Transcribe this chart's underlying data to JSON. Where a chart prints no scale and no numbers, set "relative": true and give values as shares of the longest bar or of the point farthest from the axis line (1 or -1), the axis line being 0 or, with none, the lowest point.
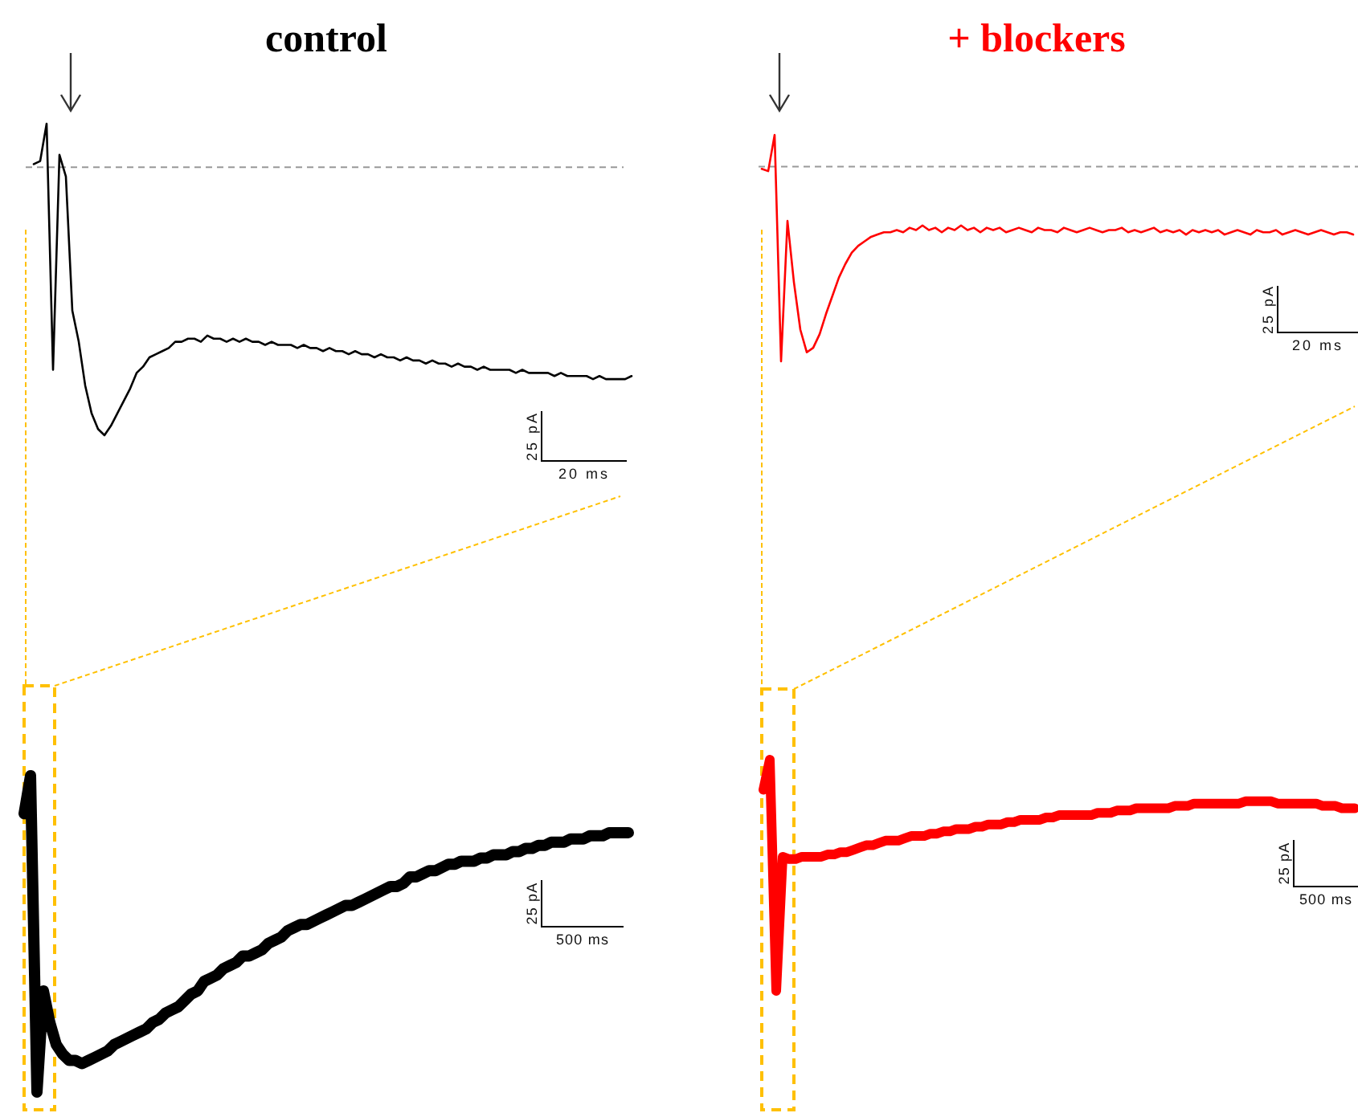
{
  "chart_data": [
    {
      "type": "line",
      "title": "control",
      "relative": true,
      "categories": [
        null,
        null,
        null,
        null,
        null,
        null,
        null,
        null,
        null,
        null,
        null,
        null,
        null,
        null,
        null,
        null,
        null,
        null,
        null,
        null,
        null,
        null,
        null,
        null,
        null,
        null,
        null,
        null,
        null,
        null,
        null,
        null,
        null,
        null,
        null,
        null,
        null,
        null,
        null,
        null,
        null,
        null,
        null,
        null,
        null,
        null,
        null,
        null,
        null,
        null,
        null,
        null,
        null,
        null,
        null,
        null,
        null,
        null,
        null,
        null,
        null,
        null,
        null,
        null,
        null,
        null,
        null,
        null,
        null,
        null,
        null,
        null,
        null,
        null,
        null,
        null,
        null,
        null,
        null,
        null,
        null,
        null,
        null,
        null,
        null,
        null,
        null,
        null,
        null,
        null,
        null,
        null,
        null,
        null
      ],
      "series": [
        {
          "color": "#000000",
          "values": [
            0.87,
            0.88,
            1,
            0.21,
            0.9,
            0.83,
            0.4,
            0.3,
            0.16,
            0.07,
            0.02,
            0,
            0.03,
            0.07,
            0.11,
            0.15,
            0.2,
            0.22,
            0.25,
            0.26,
            0.27,
            0.28,
            0.3,
            0.3,
            0.31,
            0.31,
            0.3,
            0.32,
            0.31,
            0.31,
            0.3,
            0.31,
            0.3,
            0.31,
            0.3,
            0.3,
            0.29,
            0.3,
            0.29,
            0.29,
            0.29,
            0.28,
            0.29,
            0.28,
            0.28,
            0.27,
            0.28,
            0.27,
            0.27,
            0.26,
            0.27,
            0.26,
            0.26,
            0.25,
            0.26,
            0.25,
            0.25,
            0.24,
            0.25,
            0.24,
            0.24,
            0.23,
            0.24,
            0.23,
            0.23,
            0.22,
            0.23,
            0.22,
            0.22,
            0.21,
            0.22,
            0.21,
            0.21,
            0.21,
            0.21,
            0.2,
            0.21,
            0.2,
            0.2,
            0.2,
            0.2,
            0.19,
            0.2,
            0.19,
            0.19,
            0.19,
            0.19,
            0.18,
            0.19,
            0.18,
            0.18,
            0.18,
            0.18,
            0.19
          ]
        }
      ],
      "ref_lines": [
        {
          "axis": "y",
          "value": 0.86,
          "color": "#999999",
          "line_style": "dashed"
        }
      ],
      "annotations": [
        "25 pA",
        "20 ms"
      ]
    },
    {
      "type": "line",
      "title": "+ blockers",
      "relative": true,
      "categories": [
        null,
        null,
        null,
        null,
        null,
        null,
        null,
        null,
        null,
        null,
        null,
        null,
        null,
        null,
        null,
        null,
        null,
        null,
        null,
        null,
        null,
        null,
        null,
        null,
        null,
        null,
        null,
        null,
        null,
        null,
        null,
        null,
        null,
        null,
        null,
        null,
        null,
        null,
        null,
        null,
        null,
        null,
        null,
        null,
        null,
        null,
        null,
        null,
        null,
        null,
        null,
        null,
        null,
        null,
        null,
        null,
        null,
        null,
        null,
        null,
        null,
        null,
        null,
        null,
        null,
        null,
        null,
        null,
        null,
        null,
        null,
        null,
        null,
        null,
        null,
        null,
        null,
        null,
        null,
        null,
        null,
        null,
        null,
        null,
        null,
        null,
        null,
        null,
        null,
        null,
        null,
        null,
        null
      ],
      "series": [
        {
          "color": "#ff0000",
          "values": [
            0.85,
            0.84,
            1,
            0,
            0.62,
            0.35,
            0.14,
            0.04,
            0.06,
            0.12,
            0.21,
            0.29,
            0.37,
            0.43,
            0.48,
            0.51,
            0.53,
            0.55,
            0.56,
            0.57,
            0.57,
            0.58,
            0.57,
            0.59,
            0.58,
            0.6,
            0.58,
            0.59,
            0.57,
            0.59,
            0.58,
            0.6,
            0.58,
            0.59,
            0.57,
            0.59,
            0.58,
            0.59,
            0.57,
            0.58,
            0.59,
            0.58,
            0.57,
            0.59,
            0.58,
            0.58,
            0.57,
            0.59,
            0.58,
            0.57,
            0.58,
            0.59,
            0.58,
            0.57,
            0.58,
            0.58,
            0.59,
            0.57,
            0.58,
            0.57,
            0.58,
            0.59,
            0.57,
            0.58,
            0.57,
            0.58,
            0.56,
            0.58,
            0.57,
            0.58,
            0.57,
            0.58,
            0.56,
            0.57,
            0.58,
            0.57,
            0.56,
            0.58,
            0.57,
            0.57,
            0.58,
            0.56,
            0.57,
            0.58,
            0.57,
            0.56,
            0.57,
            0.58,
            0.57,
            0.56,
            0.57,
            0.57,
            0.56
          ]
        }
      ],
      "ref_lines": [
        {
          "axis": "y",
          "value": 0.86,
          "color": "#999999",
          "line_style": "dashed"
        }
      ],
      "annotations": [
        "25 pA",
        "20 ms"
      ]
    },
    {
      "type": "line",
      "relative": true,
      "categories": [
        null,
        null,
        null,
        null,
        null,
        null,
        null,
        null,
        null,
        null,
        null,
        null,
        null,
        null,
        null,
        null,
        null,
        null,
        null,
        null,
        null,
        null,
        null,
        null,
        null,
        null,
        null,
        null,
        null,
        null,
        null,
        null,
        null,
        null,
        null,
        null,
        null,
        null,
        null,
        null,
        null,
        null,
        null,
        null,
        null,
        null,
        null,
        null,
        null,
        null,
        null,
        null,
        null,
        null,
        null,
        null,
        null,
        null,
        null,
        null,
        null,
        null,
        null,
        null,
        null,
        null,
        null,
        null,
        null,
        null,
        null,
        null,
        null,
        null,
        null,
        null,
        null,
        null,
        null,
        null,
        null,
        null,
        null,
        null,
        null,
        null,
        null,
        null,
        null,
        null,
        null,
        null,
        null,
        null,
        null
      ],
      "series": [
        {
          "color": "#000000",
          "values": [
            0.88,
            1,
            0,
            0.32,
            0.22,
            0.15,
            0.12,
            0.1,
            0.1,
            0.09,
            0.1,
            0.11,
            0.12,
            0.13,
            0.15,
            0.16,
            0.17,
            0.18,
            0.19,
            0.2,
            0.22,
            0.23,
            0.25,
            0.26,
            0.27,
            0.29,
            0.31,
            0.32,
            0.35,
            0.36,
            0.37,
            0.39,
            0.4,
            0.41,
            0.43,
            0.43,
            0.44,
            0.45,
            0.47,
            0.48,
            0.49,
            0.51,
            0.52,
            0.53,
            0.53,
            0.54,
            0.55,
            0.56,
            0.57,
            0.58,
            0.59,
            0.59,
            0.6,
            0.61,
            0.62,
            0.63,
            0.64,
            0.65,
            0.65,
            0.66,
            0.68,
            0.68,
            0.69,
            0.7,
            0.7,
            0.71,
            0.72,
            0.72,
            0.73,
            0.73,
            0.73,
            0.74,
            0.74,
            0.75,
            0.75,
            0.75,
            0.76,
            0.76,
            0.77,
            0.77,
            0.78,
            0.78,
            0.79,
            0.79,
            0.79,
            0.8,
            0.8,
            0.8,
            0.81,
            0.81,
            0.81,
            0.82,
            0.82,
            0.82,
            0.82
          ]
        }
      ],
      "annotations": [
        "25 pA",
        "500 ms"
      ]
    },
    {
      "type": "line",
      "relative": true,
      "categories": [
        null,
        null,
        null,
        null,
        null,
        null,
        null,
        null,
        null,
        null,
        null,
        null,
        null,
        null,
        null,
        null,
        null,
        null,
        null,
        null,
        null,
        null,
        null,
        null,
        null,
        null,
        null,
        null,
        null,
        null,
        null,
        null,
        null,
        null,
        null,
        null,
        null,
        null,
        null,
        null,
        null,
        null,
        null,
        null,
        null,
        null,
        null,
        null,
        null,
        null,
        null,
        null,
        null,
        null,
        null,
        null,
        null,
        null,
        null,
        null,
        null,
        null,
        null,
        null,
        null,
        null,
        null,
        null,
        null,
        null,
        null,
        null,
        null,
        null,
        null,
        null,
        null,
        null,
        null,
        null,
        null,
        null,
        null,
        null,
        null,
        null,
        null,
        null,
        null,
        null,
        null,
        null,
        null
      ],
      "series": [
        {
          "color": "#ff0000",
          "values": [
            0.87,
            1,
            0,
            0.58,
            0.57,
            0.57,
            0.58,
            0.58,
            0.58,
            0.58,
            0.59,
            0.59,
            0.6,
            0.6,
            0.61,
            0.62,
            0.63,
            0.63,
            0.64,
            0.65,
            0.65,
            0.65,
            0.66,
            0.67,
            0.67,
            0.67,
            0.68,
            0.68,
            0.69,
            0.69,
            0.7,
            0.7,
            0.7,
            0.71,
            0.71,
            0.72,
            0.72,
            0.72,
            0.73,
            0.73,
            0.74,
            0.74,
            0.74,
            0.74,
            0.75,
            0.75,
            0.76,
            0.76,
            0.76,
            0.76,
            0.76,
            0.76,
            0.77,
            0.77,
            0.77,
            0.78,
            0.78,
            0.78,
            0.79,
            0.79,
            0.79,
            0.79,
            0.79,
            0.79,
            0.8,
            0.8,
            0.8,
            0.81,
            0.81,
            0.81,
            0.81,
            0.81,
            0.81,
            0.81,
            0.81,
            0.82,
            0.82,
            0.82,
            0.82,
            0.82,
            0.81,
            0.81,
            0.81,
            0.81,
            0.81,
            0.81,
            0.81,
            0.8,
            0.8,
            0.8,
            0.79,
            0.79,
            0.79
          ]
        }
      ],
      "annotations": [
        "25 pA",
        "500 ms"
      ]
    }
  ]
}
